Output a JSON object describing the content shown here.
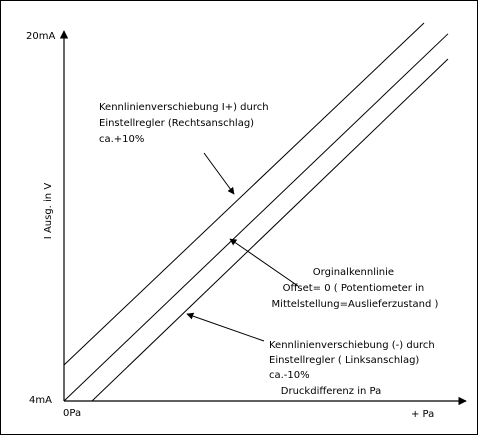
{
  "chart_data": {
    "type": "line",
    "xlabel": "Druckdifferenz in Pa",
    "ylabel": "I Ausg. in V",
    "x_ticks": [
      "0Pa",
      "+ Pa"
    ],
    "y_ticks": [
      "4mA",
      "20mA"
    ],
    "xlim": [
      0,
      1
    ],
    "ylim": [
      0,
      1
    ],
    "series": [
      {
        "name": "Kennlinienverschiebung (+)",
        "x": [
          0.0,
          0.9
        ],
        "y": [
          0.1,
          1.05
        ]
      },
      {
        "name": "Orginalkennlinie",
        "x": [
          0.0,
          0.96
        ],
        "y": [
          0.0,
          1.02
        ]
      },
      {
        "name": "Kennlinienverschiebung (-)",
        "x": [
          0.07,
          0.96
        ],
        "y": [
          0.0,
          0.95
        ]
      }
    ],
    "annotations": [
      {
        "id": "upper",
        "lines": [
          "Kennlinienverschiebung I+) durch",
          "Einstellregler (Rechtsanschlag)",
          "ca.+10%"
        ],
        "align": "start"
      },
      {
        "id": "middle",
        "lines": [
          "Orginalkennlinie",
          "Offset= 0 ( Potentiometer in",
          "Mittelstellung=Auslieferzustand )"
        ],
        "align": "middle"
      },
      {
        "id": "lower",
        "lines": [
          "Kennlinienverschiebung (-) durch",
          "Einstellregler ( Linksanschlag)",
          "ca.-10%"
        ],
        "align": "start"
      }
    ]
  }
}
